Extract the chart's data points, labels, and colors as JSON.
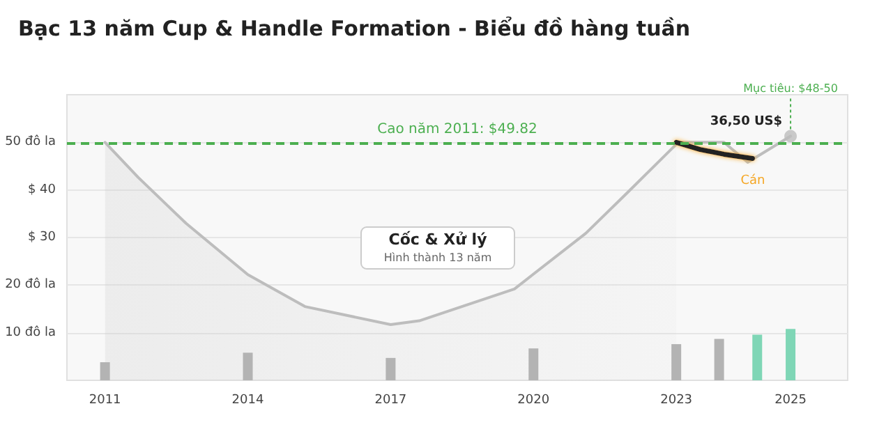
{
  "chart_data": {
    "type": "line",
    "title": "Bạc 13 năm Cup & Handle Formation - Biểu đồ hàng tuần",
    "xlim": [
      2010.2,
      2026.6
    ],
    "xticks": [
      2011,
      2014,
      2017,
      2020,
      2023,
      {
        "value": 2025.4,
        "label": "2025"
      }
    ],
    "ylim": [
      0,
      60
    ],
    "yticks": [
      {
        "value": 10,
        "label": "10 đô la"
      },
      {
        "value": 20,
        "label": "20 đô la"
      },
      {
        "value": 30,
        "label": "$ 30"
      },
      {
        "value": 40,
        "label": "$ 40"
      },
      {
        "value": 50,
        "label": "50 đô la"
      }
    ],
    "grid": "y",
    "series": [
      {
        "type": "bar",
        "x": [
          2011,
          2014,
          2017,
          2020,
          2023,
          2023.9,
          2024.7,
          2025.4
        ],
        "values": [
          3.8,
          5.8,
          4.7,
          6.7,
          7.6,
          8.7,
          9.6,
          10.8
        ],
        "colors": [
          "#b3b3b3",
          "#b3b3b3",
          "#b3b3b3",
          "#b3b3b3",
          "#b3b3b3",
          "#b3b3b3",
          "#7fd6b6",
          "#7fd6b6"
        ]
      },
      {
        "type": "area",
        "color": "#bdbdbd",
        "marker": "none",
        "x": [
          2011,
          2011.7,
          2012.7,
          2014,
          2015.2,
          2017,
          2017.6,
          2019.6,
          2021.1,
          2022,
          2023
        ],
        "values": [
          50,
          42.6,
          33,
          22.2,
          15.5,
          11.7,
          12.5,
          19.2,
          30.9,
          39.7,
          49.6
        ]
      },
      {
        "color": "#bdbdbd",
        "marker": "none",
        "x": [
          2023,
          2024,
          2024.5,
          2025.4
        ],
        "values": [
          50,
          50,
          45.8,
          51.3
        ]
      },
      {
        "color": "#222222",
        "marker": "none",
        "x": [
          2023,
          2023.5,
          2024,
          2024.6
        ],
        "values": [
          50,
          48.5,
          47.5,
          46.6
        ]
      },
      {
        "type": "scatter",
        "color": "#bdbdbd",
        "marker": "circle",
        "x": [
          2025.4
        ],
        "values": [
          51.3
        ]
      }
    ],
    "ref_lines": [
      {
        "axis": "y",
        "value": 49.82,
        "label": "Cao năm 2011: $49.82",
        "color": "#4caf50",
        "line_style": "dashed"
      }
    ],
    "annotations": [
      "Cán",
      {
        "text": "Mục tiêu: $48-50",
        "x": 2025.4,
        "y": 51.3
      },
      {
        "text": "36,50 US$",
        "x": 2025.4,
        "y": 51.3
      },
      "Cốc & Xử lý",
      "Hình thành 13 năm"
    ]
  }
}
